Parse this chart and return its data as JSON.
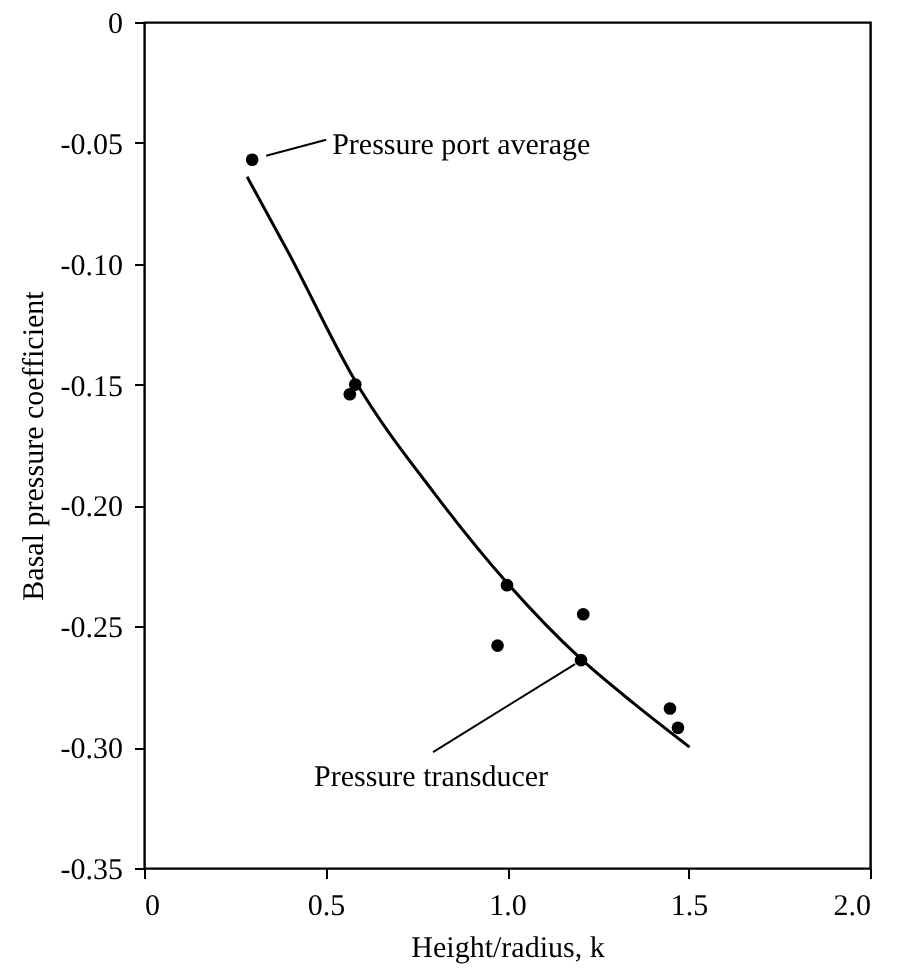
{
  "chart_data": {
    "type": "scatter",
    "xlabel": "Height/radius, k",
    "ylabel": "Basal pressure coefficient",
    "xlim": [
      0,
      2.0
    ],
    "ylim": [
      -0.35,
      0
    ],
    "xticks": [
      0,
      0.5,
      {
        "value": 1.0,
        "label": "1.0"
      },
      1.5,
      {
        "value": 2.0,
        "label": "2.0"
      }
    ],
    "yticks": [
      {
        "value": -0.35,
        "label": "-0.35"
      },
      {
        "value": -0.3,
        "label": "-0.30"
      },
      {
        "value": -0.25,
        "label": "-0.25"
      },
      {
        "value": -0.2,
        "label": "-0.20"
      },
      {
        "value": -0.15,
        "label": "-0.15"
      },
      {
        "value": -0.1,
        "label": "-0.10"
      },
      {
        "value": -0.05,
        "label": "-0.05"
      },
      0
    ],
    "grid": false,
    "series": [
      {
        "marker": "circle",
        "color": "#000000",
        "x": [
          0.298,
          0.567,
          0.974,
          1.21,
          1.449
        ],
        "values": [
          -0.057,
          -0.154,
          -0.258,
          -0.245,
          -0.284
        ]
      },
      {
        "marker": "circle",
        "color": "#000000",
        "x": [
          0.582,
          1.0,
          1.204,
          1.471
        ],
        "values": [
          -0.15,
          -0.233,
          -0.264,
          -0.292
        ]
      },
      {
        "type": "line",
        "line_style": "solid",
        "color": "#000000",
        "x": [
          0.284,
          0.4,
          0.58,
          0.8,
          1.0,
          1.2,
          1.35,
          1.503
        ],
        "values": [
          -0.064,
          -0.096,
          -0.148,
          -0.195,
          -0.232,
          -0.263,
          -0.282,
          -0.3
        ]
      }
    ],
    "annotations": [
      {
        "text": "Pressure port average",
        "x": 0.298,
        "y": -0.057
      },
      {
        "text": "Pressure transducer",
        "x": 1.204,
        "y": -0.264
      }
    ]
  }
}
